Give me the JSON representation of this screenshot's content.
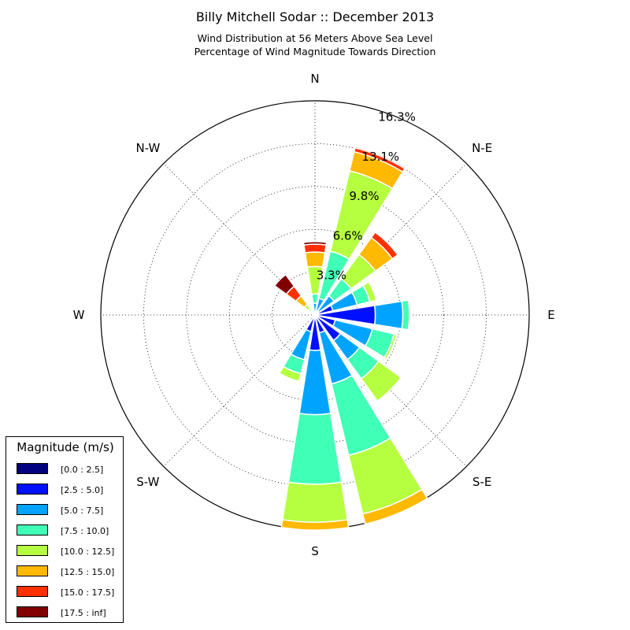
{
  "titles": {
    "main": "Billy Mitchell Sodar :: December 2013",
    "line2": "Wind Distribution at 56 Meters Above Sea Level",
    "line3": "Percentage of Wind Magnitude Towards Direction"
  },
  "legend": {
    "title": "Magnitude (m/s)",
    "items": [
      {
        "label": "[0.0 : 2.5]",
        "color": "#000080"
      },
      {
        "label": "[2.5 : 5.0]",
        "color": "#0010ff"
      },
      {
        "label": "[5.0 : 7.5]",
        "color": "#00a4ff"
      },
      {
        "label": "[7.5 : 10.0]",
        "color": "#40ffb6"
      },
      {
        "label": "[10.0 : 12.5]",
        "color": "#b6ff40"
      },
      {
        "label": "[12.5 : 15.0]",
        "color": "#ffb900"
      },
      {
        "label": "[15.0 : 17.5]",
        "color": "#ff3000"
      },
      {
        "label": "[17.5 : inf]",
        "color": "#800000"
      }
    ]
  },
  "chart_data": {
    "type": "windrose",
    "title": "Billy Mitchell Sodar :: December 2013",
    "radial_unit": "percent",
    "radial_ticks": [
      "3.3%",
      "6.6%",
      "9.8%",
      "13.1%",
      "16.3%"
    ],
    "radial_tick_values": [
      3.27,
      6.53,
      9.8,
      13.06,
      16.33
    ],
    "radial_max": 16.33,
    "direction_labels": [
      {
        "label": "N",
        "deg": 0
      },
      {
        "label": "N-E",
        "deg": 45
      },
      {
        "label": "E",
        "deg": 90
      },
      {
        "label": "S-E",
        "deg": 135
      },
      {
        "label": "S",
        "deg": 180
      },
      {
        "label": "S-W",
        "deg": 225
      },
      {
        "label": "W",
        "deg": 270
      },
      {
        "label": "N-W",
        "deg": 315
      }
    ],
    "bins": [
      "[0.0 : 2.5]",
      "[2.5 : 5.0]",
      "[5.0 : 7.5]",
      "[7.5 : 10.0]",
      "[10.0 : 12.5]",
      "[12.5 : 15.0]",
      "[15.0 : 17.5]",
      "[17.5 : inf]"
    ],
    "grid": true,
    "legend_position": "bottom-left",
    "sectors": [
      {
        "dir": 0,
        "cumulative": [
          0.12,
          0.25,
          0.9,
          1.6,
          3.7,
          4.8,
          5.4,
          5.6
        ]
      },
      {
        "dir": 22.5,
        "cumulative": [
          0.12,
          0.35,
          1.3,
          5.0,
          11.3,
          12.8,
          13.1,
          13.2
        ]
      },
      {
        "dir": 45,
        "cumulative": [
          0.12,
          0.35,
          1.8,
          3.4,
          5.7,
          7.3,
          7.8,
          7.8
        ]
      },
      {
        "dir": 67.5,
        "cumulative": [
          0.12,
          1.4,
          3.3,
          4.3,
          4.8,
          4.8,
          4.8,
          4.8
        ]
      },
      {
        "dir": 90,
        "cumulative": [
          0.12,
          4.6,
          6.7,
          7.2,
          7.3,
          7.3,
          7.3,
          7.3
        ]
      },
      {
        "dir": 112.5,
        "cumulative": [
          0.12,
          1.6,
          4.5,
          6.2,
          6.4,
          6.4,
          6.4,
          6.4
        ]
      },
      {
        "dir": 135,
        "cumulative": [
          0.12,
          2.4,
          4.2,
          6.0,
          8.1,
          8.1,
          8.1,
          8.1
        ]
      },
      {
        "dir": 157.5,
        "cumulative": [
          0.12,
          1.4,
          5.4,
          11.0,
          15.6,
          16.4,
          16.4,
          16.4
        ]
      },
      {
        "dir": 180,
        "cumulative": [
          0.12,
          2.7,
          7.6,
          12.9,
          15.8,
          16.4,
          16.4,
          16.4
        ]
      },
      {
        "dir": 202.5,
        "cumulative": [
          0.12,
          1.3,
          3.5,
          4.6,
          5.2,
          5.2,
          5.2,
          5.2
        ]
      },
      {
        "dir": 225,
        "cumulative": [
          0.12,
          0.25,
          0.5,
          0.5,
          0.5,
          0.5,
          0.5,
          0.5
        ]
      },
      {
        "dir": 247.5,
        "cumulative": [
          0.12,
          0.25,
          0.3,
          0.3,
          0.3,
          0.3,
          0.3,
          0.3
        ]
      },
      {
        "dir": 270,
        "cumulative": [
          0.12,
          0.2,
          0.2,
          0.2,
          0.2,
          0.2,
          0.2,
          0.2
        ]
      },
      {
        "dir": 292.5,
        "cumulative": [
          0.12,
          0.2,
          0.2,
          0.2,
          0.2,
          0.2,
          0.2,
          0.2
        ]
      },
      {
        "dir": 315,
        "cumulative": [
          0.12,
          0.25,
          0.4,
          0.6,
          1.0,
          1.8,
          2.7,
          3.8
        ]
      },
      {
        "dir": 337.5,
        "cumulative": [
          0.12,
          0.25,
          0.35,
          0.35,
          0.35,
          0.35,
          0.35,
          0.35
        ]
      }
    ]
  }
}
